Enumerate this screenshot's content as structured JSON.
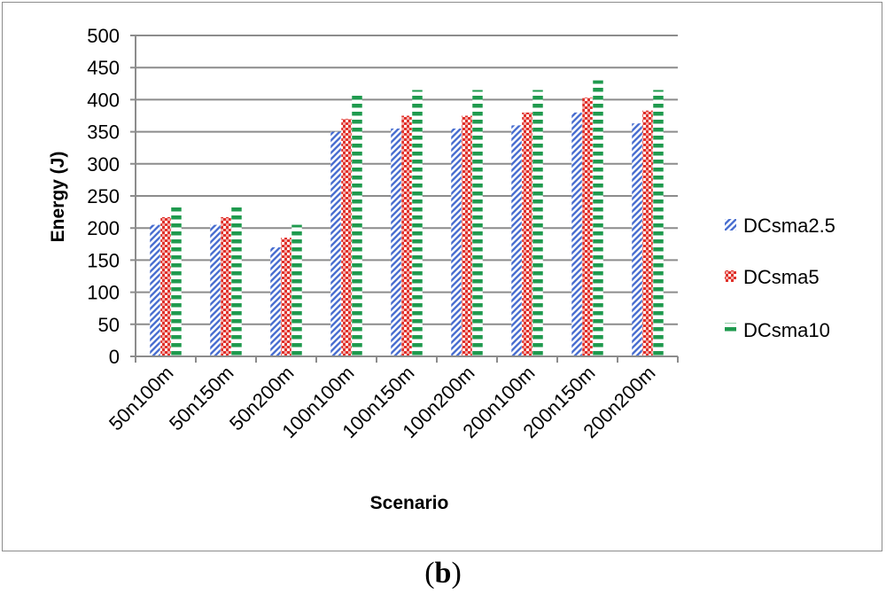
{
  "chart_data": {
    "type": "bar",
    "title": "",
    "xlabel": "Scenario",
    "ylabel": "Energy (J)",
    "ylim": [
      0,
      500
    ],
    "yticks": [
      0,
      50,
      100,
      150,
      200,
      250,
      300,
      350,
      400,
      450,
      500
    ],
    "grid": true,
    "legend_position": "right",
    "categories": [
      "50n100m",
      "50n150m",
      "50n200m",
      "100n100m",
      "100n150m",
      "100n200m",
      "200n100m",
      "200n150m",
      "200n200m"
    ],
    "series": [
      {
        "name": "DCsma2.5",
        "values": [
          205,
          205,
          170,
          350,
          355,
          355,
          360,
          380,
          363
        ]
      },
      {
        "name": "DCsma5",
        "values": [
          217,
          217,
          185,
          370,
          375,
          375,
          380,
          403,
          383
        ]
      },
      {
        "name": "DCsma10",
        "values": [
          237,
          237,
          205,
          410,
          415,
          415,
          415,
          430,
          415
        ]
      }
    ]
  },
  "colors": {
    "grid": "#8c8c8c",
    "series1": "#4a6fd0",
    "series2": "#e0302a",
    "series3": "#1f9a4e"
  },
  "caption": "b"
}
